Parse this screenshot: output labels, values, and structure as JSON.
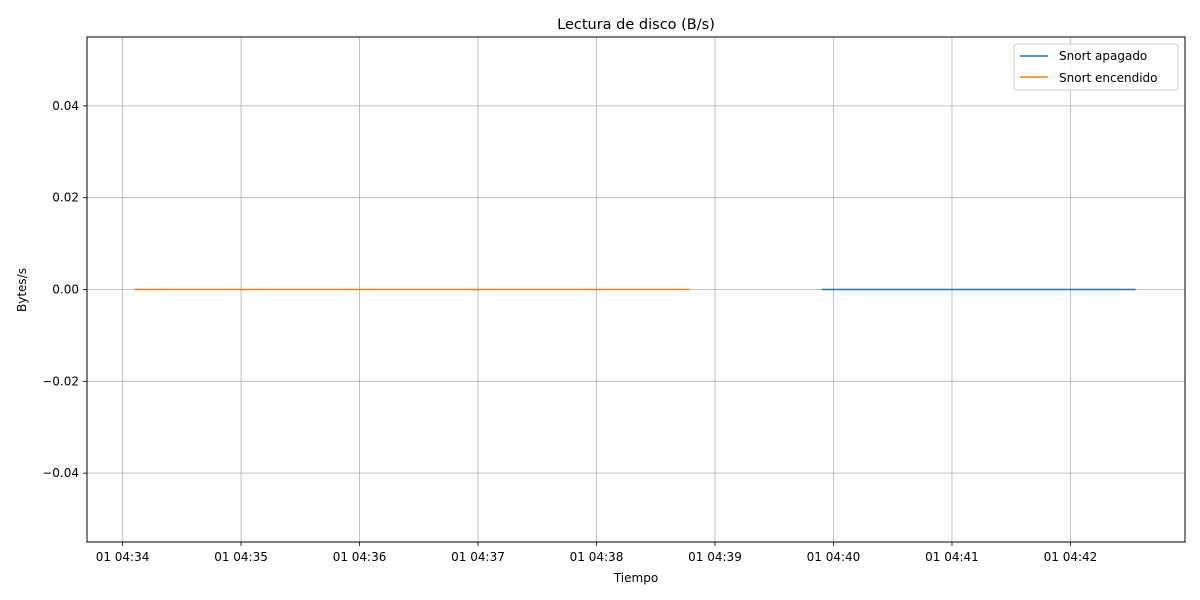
{
  "chart_data": {
    "type": "line",
    "title": "Lectura de disco (B/s)",
    "xlabel": "Tiempo",
    "ylabel": "Bytes/s",
    "grid": true,
    "legend_position": "top-right",
    "x_axis": {
      "kind": "time",
      "range": [
        "01 04:33:42",
        "01 04:42:58"
      ],
      "tick_values": [
        "01 04:34:00",
        "01 04:35:00",
        "01 04:36:00",
        "01 04:37:00",
        "01 04:38:00",
        "01 04:39:00",
        "01 04:40:00",
        "01 04:41:00",
        "01 04:42:00"
      ],
      "tick_labels": [
        "01 04:34",
        "01 04:35",
        "01 04:36",
        "01 04:37",
        "01 04:38",
        "01 04:39",
        "01 04:40",
        "01 04:41",
        "01 04:42"
      ]
    },
    "y_axis": {
      "range": [
        -0.055,
        0.055
      ],
      "tick_values": [
        -0.04,
        -0.02,
        0.0,
        0.02,
        0.04
      ],
      "tick_labels": [
        "−0.04",
        "−0.02",
        "0.00",
        "0.02",
        "0.04"
      ]
    },
    "series": [
      {
        "name": "Snort apagado",
        "color": "#1f77b4",
        "points": [
          {
            "x": "01 04:39:54",
            "y": 0
          },
          {
            "x": "01 04:42:33",
            "y": 0
          }
        ]
      },
      {
        "name": "Snort encendido",
        "color": "#ff7f0e",
        "points": [
          {
            "x": "01 04:34:06",
            "y": 0
          },
          {
            "x": "01 04:38:47",
            "y": 0
          }
        ]
      }
    ]
  }
}
